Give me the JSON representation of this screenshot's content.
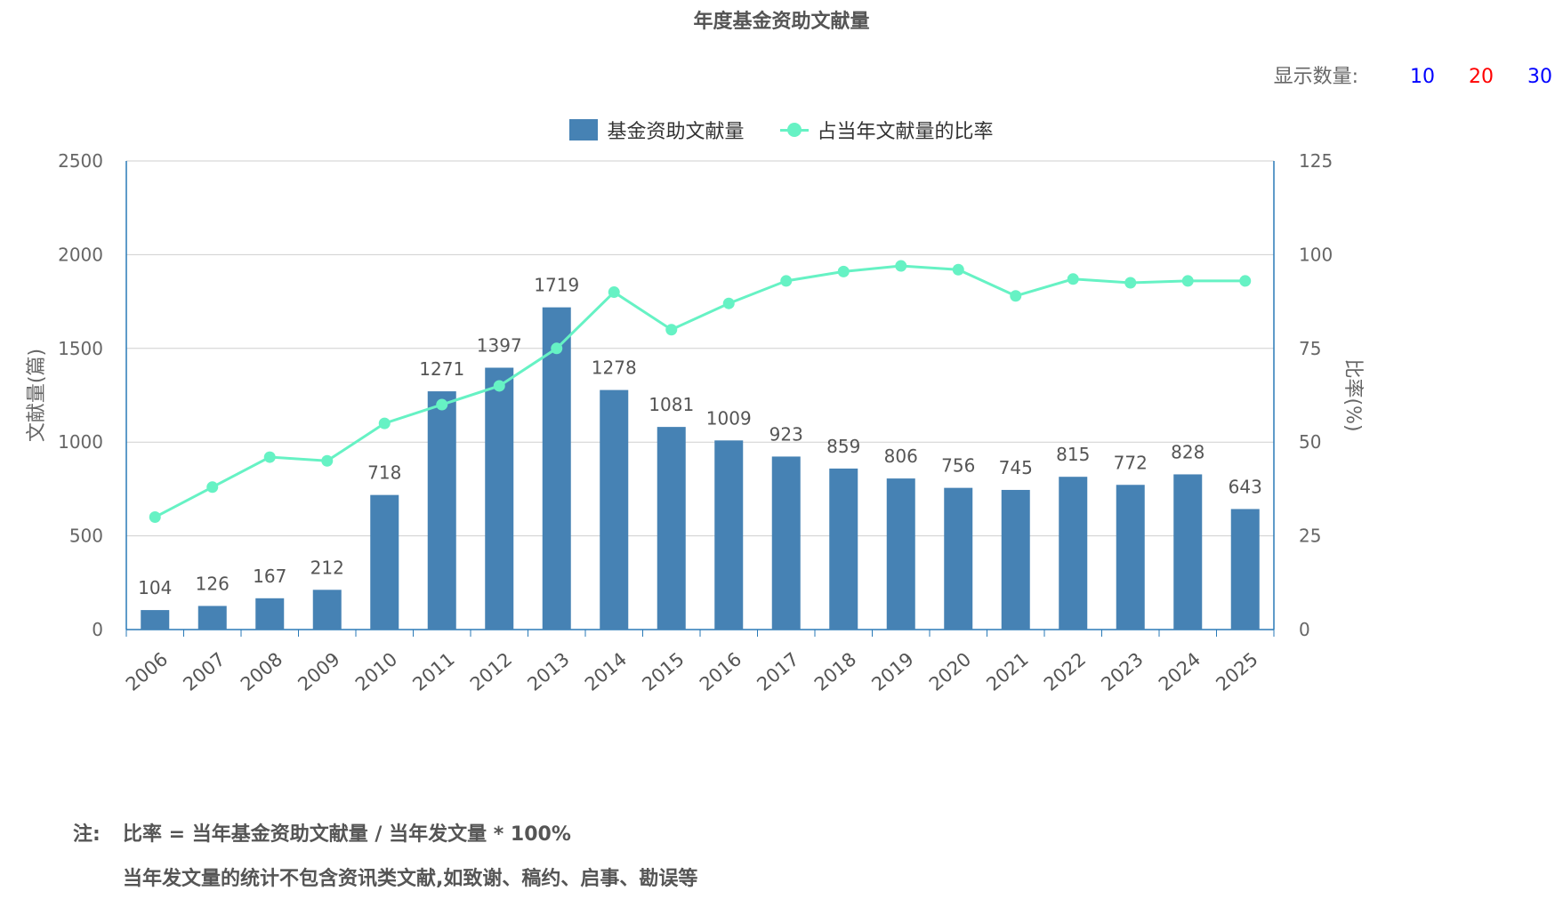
{
  "title": "年度基金资助文献量",
  "display_count": {
    "label": "显示数量:",
    "options": [
      {
        "label": "10",
        "color": "#0000ff"
      },
      {
        "label": "20",
        "color": "#ff0000"
      },
      {
        "label": "30",
        "color": "#0000ff"
      }
    ]
  },
  "notes": {
    "prefix": "注:",
    "line1": "比率 = 当年基金资助文献量 / 当年发文量 * 100%",
    "line2": "当年发文量的统计不包含资讯类文献,如致谢、稿约、启事、勘误等"
  },
  "chart_data": {
    "type": "bar+line",
    "title": "年度基金资助文献量",
    "categories": [
      "2006",
      "2007",
      "2008",
      "2009",
      "2010",
      "2011",
      "2012",
      "2013",
      "2014",
      "2015",
      "2016",
      "2017",
      "2018",
      "2019",
      "2020",
      "2021",
      "2022",
      "2023",
      "2024",
      "2025"
    ],
    "ylabel_left": "文献量(篇)",
    "ylabel_right": "比率(%)",
    "ylim_left": [
      0,
      2500
    ],
    "yticks_left": [
      "0",
      "500",
      "1000",
      "1500",
      "2000",
      "2500"
    ],
    "ylim_right": [
      0,
      125
    ],
    "yticks_right": [
      "0",
      "25",
      "50",
      "75",
      "100",
      "125"
    ],
    "grid": true,
    "legend_position": "top-center",
    "series": [
      {
        "name": "基金资助文献量",
        "type": "bar",
        "color": "#4682b4",
        "axis": "left",
        "values": [
          104,
          126,
          167,
          212,
          718,
          1271,
          1397,
          1719,
          1278,
          1081,
          1009,
          923,
          859,
          806,
          756,
          745,
          815,
          772,
          828,
          643
        ]
      },
      {
        "name": "占当年文献量的比率",
        "type": "line",
        "color": "#66f2c4",
        "axis": "right",
        "values": [
          30,
          38,
          46,
          45,
          55,
          60,
          65,
          75,
          90,
          80,
          87,
          93,
          95.5,
          97,
          96,
          89,
          93.5,
          92.5,
          93,
          93
        ]
      }
    ]
  }
}
